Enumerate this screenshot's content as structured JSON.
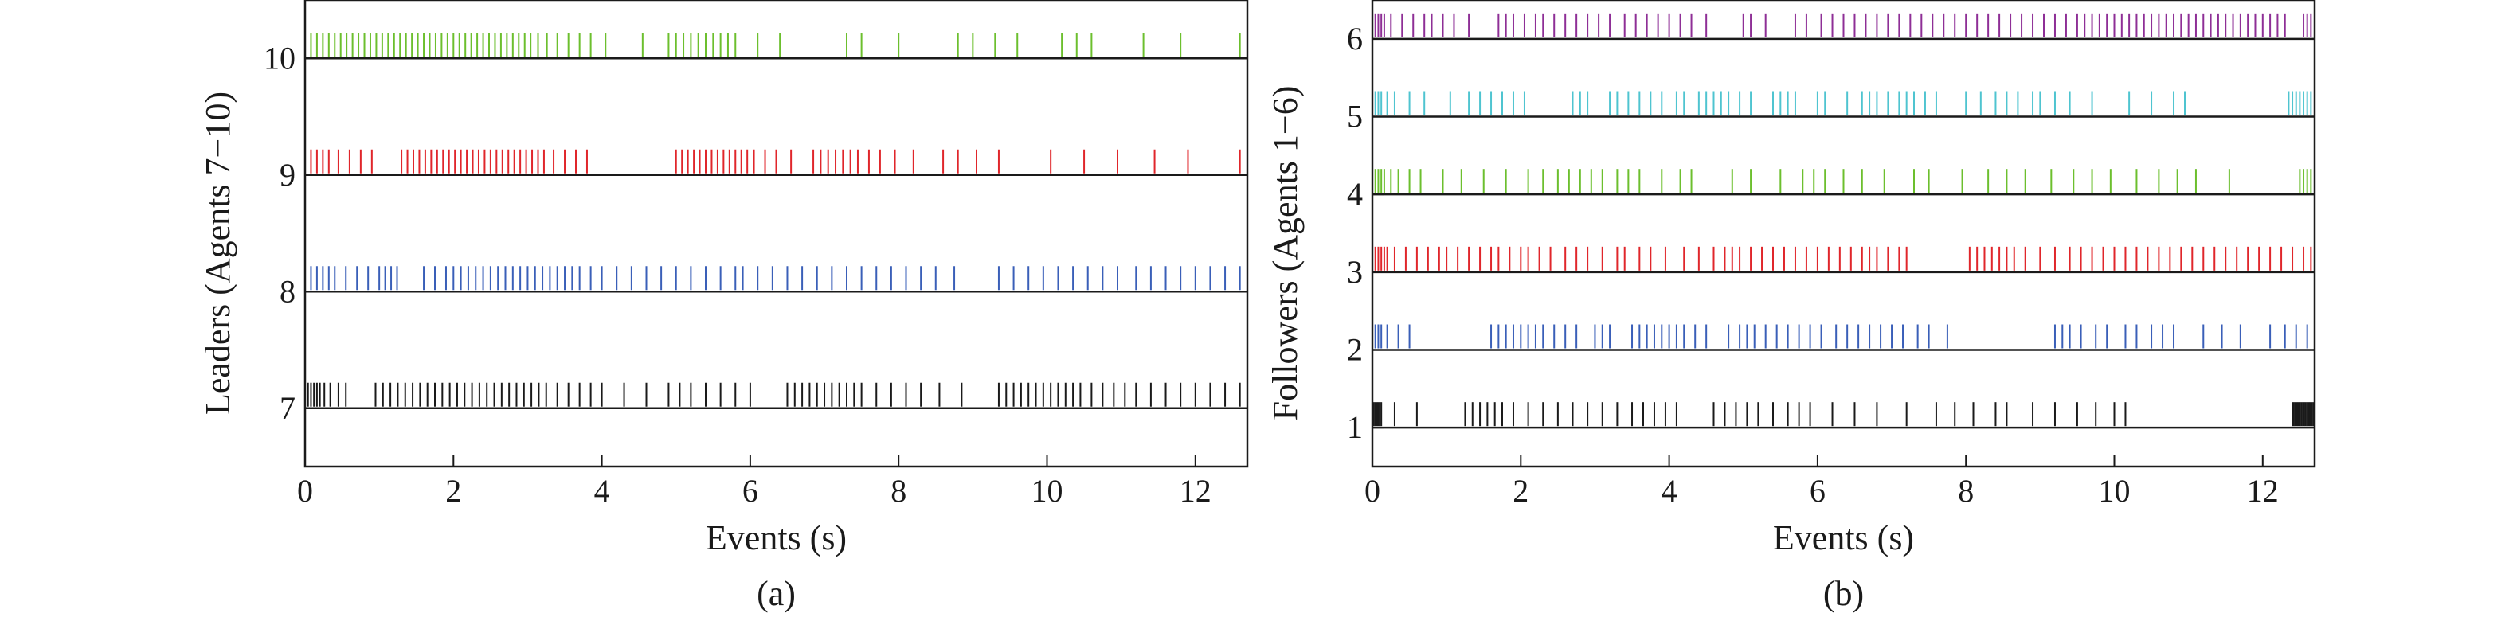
{
  "chart_data": [
    {
      "type": "event",
      "panel_label": "(a)",
      "xlabel": "Events (s)",
      "ylabel": "Leaders (Agents 7−10)",
      "xlim": [
        0,
        12.7
      ],
      "ylim": [
        6.5,
        10.5
      ],
      "xticks": [
        0,
        2,
        4,
        6,
        8,
        10,
        12
      ],
      "yticks": [
        7,
        8,
        9,
        10
      ],
      "grid": false,
      "series": [
        {
          "agent": 10,
          "color": "#6cbf2e",
          "x": [
            0.08,
            0.16,
            0.24,
            0.32,
            0.4,
            0.48,
            0.56,
            0.64,
            0.72,
            0.8,
            0.88,
            0.96,
            1.04,
            1.12,
            1.2,
            1.28,
            1.36,
            1.44,
            1.52,
            1.6,
            1.68,
            1.76,
            1.84,
            1.92,
            2.0,
            2.08,
            2.16,
            2.24,
            2.32,
            2.4,
            2.48,
            2.56,
            2.64,
            2.72,
            2.8,
            2.88,
            2.96,
            3.04,
            3.14,
            3.26,
            3.4,
            3.55,
            3.7,
            3.85,
            4.05,
            4.55,
            4.9,
            5.0,
            5.1,
            5.2,
            5.3,
            5.4,
            5.5,
            5.6,
            5.7,
            5.8,
            6.1,
            6.4,
            7.3,
            7.5,
            8.0,
            8.8,
            9.0,
            9.3,
            9.6,
            10.2,
            10.4,
            10.6,
            11.3,
            11.8,
            12.6
          ]
        },
        {
          "agent": 9,
          "color": "#e0262b",
          "x": [
            0.08,
            0.16,
            0.24,
            0.32,
            0.45,
            0.6,
            0.75,
            0.9,
            1.3,
            1.38,
            1.46,
            1.54,
            1.62,
            1.7,
            1.78,
            1.86,
            1.94,
            2.02,
            2.1,
            2.18,
            2.26,
            2.34,
            2.42,
            2.5,
            2.58,
            2.66,
            2.74,
            2.82,
            2.9,
            2.98,
            3.06,
            3.14,
            3.22,
            3.35,
            3.5,
            3.65,
            3.8,
            5.0,
            5.08,
            5.16,
            5.24,
            5.32,
            5.4,
            5.48,
            5.56,
            5.64,
            5.72,
            5.8,
            5.88,
            5.96,
            6.05,
            6.2,
            6.35,
            6.55,
            6.85,
            6.95,
            7.05,
            7.15,
            7.25,
            7.35,
            7.45,
            7.6,
            7.75,
            7.95,
            8.2,
            8.6,
            8.8,
            9.05,
            9.35,
            10.05,
            10.5,
            10.95,
            11.45,
            11.9,
            12.6
          ]
        },
        {
          "agent": 8,
          "color": "#3a5fb8",
          "x": [
            0.08,
            0.16,
            0.24,
            0.32,
            0.4,
            0.55,
            0.7,
            0.85,
            1.0,
            1.08,
            1.16,
            1.24,
            1.6,
            1.75,
            1.9,
            2.0,
            2.1,
            2.2,
            2.3,
            2.4,
            2.5,
            2.6,
            2.7,
            2.8,
            2.9,
            3.0,
            3.1,
            3.2,
            3.3,
            3.4,
            3.5,
            3.6,
            3.7,
            3.85,
            4.0,
            4.2,
            4.4,
            4.6,
            4.8,
            5.0,
            5.2,
            5.4,
            5.6,
            5.8,
            5.9,
            6.1,
            6.3,
            6.5,
            6.7,
            6.9,
            7.1,
            7.3,
            7.5,
            7.7,
            7.9,
            8.1,
            8.3,
            8.5,
            8.75,
            9.35,
            9.55,
            9.75,
            9.95,
            10.15,
            10.35,
            10.55,
            10.75,
            10.95,
            11.2,
            11.4,
            11.6,
            11.8,
            12.0,
            12.2,
            12.4,
            12.6
          ]
        },
        {
          "agent": 7,
          "color": "#1a1a1a",
          "x": [
            0.04,
            0.08,
            0.12,
            0.16,
            0.2,
            0.26,
            0.34,
            0.45,
            0.55,
            0.95,
            1.05,
            1.15,
            1.25,
            1.35,
            1.45,
            1.55,
            1.65,
            1.75,
            1.85,
            1.95,
            2.05,
            2.15,
            2.25,
            2.35,
            2.45,
            2.55,
            2.65,
            2.75,
            2.85,
            2.95,
            3.05,
            3.15,
            3.25,
            3.4,
            3.55,
            3.7,
            3.85,
            4.0,
            4.3,
            4.6,
            4.9,
            5.05,
            5.2,
            5.4,
            5.6,
            5.8,
            6.0,
            6.5,
            6.6,
            6.7,
            6.8,
            6.9,
            7.0,
            7.1,
            7.2,
            7.3,
            7.4,
            7.5,
            7.7,
            7.9,
            8.1,
            8.3,
            8.55,
            8.85,
            9.35,
            9.45,
            9.55,
            9.65,
            9.75,
            9.85,
            9.95,
            10.05,
            10.15,
            10.25,
            10.35,
            10.45,
            10.6,
            10.75,
            10.9,
            11.05,
            11.2,
            11.4,
            11.6,
            11.8,
            12.0,
            12.2,
            12.4,
            12.6
          ]
        }
      ]
    },
    {
      "type": "event",
      "panel_label": "(b)",
      "xlabel": "Events (s)",
      "ylabel": "Followers (Agents 1−6)",
      "xlim": [
        0,
        12.7
      ],
      "ylim": [
        0.5,
        6.5
      ],
      "xticks": [
        0,
        2,
        4,
        6,
        8,
        10,
        12
      ],
      "yticks": [
        1,
        2,
        3,
        4,
        5,
        6
      ],
      "grid": false,
      "series": [
        {
          "agent": 6,
          "color": "#8e2f96",
          "x": [
            0.04,
            0.08,
            0.12,
            0.16,
            0.25,
            0.4,
            0.55,
            0.7,
            0.8,
            0.95,
            1.1,
            1.3,
            1.7,
            1.8,
            1.9,
            2.05,
            2.2,
            2.3,
            2.45,
            2.6,
            2.75,
            2.9,
            3.05,
            3.2,
            3.4,
            3.55,
            3.7,
            3.85,
            4.0,
            4.15,
            4.3,
            4.5,
            5.0,
            5.1,
            5.3,
            5.7,
            5.85,
            6.05,
            6.2,
            6.35,
            6.5,
            6.65,
            6.8,
            6.95,
            7.1,
            7.25,
            7.4,
            7.55,
            7.7,
            7.85,
            8.0,
            8.15,
            8.3,
            8.45,
            8.6,
            8.75,
            8.9,
            9.05,
            9.2,
            9.35,
            9.5,
            9.6,
            9.7,
            9.8,
            9.9,
            10.0,
            10.1,
            10.2,
            10.3,
            10.4,
            10.5,
            10.6,
            10.7,
            10.8,
            10.9,
            11.0,
            11.1,
            11.2,
            11.3,
            11.4,
            11.5,
            11.6,
            11.7,
            11.8,
            11.9,
            12.0,
            12.1,
            12.2,
            12.3,
            12.55,
            12.6,
            12.65
          ]
        },
        {
          "agent": 5,
          "color": "#4fc4d0",
          "x": [
            0.04,
            0.08,
            0.12,
            0.2,
            0.3,
            0.5,
            0.7,
            1.05,
            1.3,
            1.45,
            1.6,
            1.75,
            1.9,
            2.05,
            2.7,
            2.8,
            2.9,
            3.2,
            3.3,
            3.45,
            3.6,
            3.75,
            3.9,
            4.1,
            4.2,
            4.4,
            4.5,
            4.6,
            4.7,
            4.8,
            4.95,
            5.1,
            5.4,
            5.5,
            5.6,
            5.7,
            6.0,
            6.1,
            6.4,
            6.6,
            6.7,
            6.8,
            6.95,
            7.1,
            7.2,
            7.3,
            7.45,
            7.6,
            8.0,
            8.2,
            8.4,
            8.55,
            8.7,
            8.9,
            9.0,
            9.2,
            9.4,
            9.7,
            10.2,
            10.5,
            10.8,
            10.95,
            12.35,
            12.4,
            12.45,
            12.5,
            12.55,
            12.6,
            12.65
          ]
        },
        {
          "agent": 4,
          "color": "#6cbf2e",
          "x": [
            0.04,
            0.08,
            0.12,
            0.16,
            0.25,
            0.35,
            0.5,
            0.65,
            0.95,
            1.2,
            1.5,
            1.8,
            2.1,
            2.3,
            2.5,
            2.65,
            2.8,
            2.95,
            3.1,
            3.3,
            3.45,
            3.6,
            3.9,
            4.15,
            4.3,
            4.85,
            5.1,
            5.5,
            5.8,
            5.95,
            6.1,
            6.35,
            6.6,
            6.9,
            7.3,
            7.5,
            7.95,
            8.3,
            8.55,
            8.8,
            9.15,
            9.45,
            9.7,
            9.95,
            10.3,
            10.6,
            10.85,
            11.1,
            11.55,
            12.5,
            12.55,
            12.6,
            12.65
          ]
        },
        {
          "agent": 3,
          "color": "#e0262b",
          "x": [
            0.04,
            0.08,
            0.12,
            0.16,
            0.2,
            0.3,
            0.45,
            0.6,
            0.75,
            0.9,
            1.0,
            1.15,
            1.3,
            1.45,
            1.6,
            1.7,
            1.85,
            2.0,
            2.1,
            2.25,
            2.4,
            2.6,
            2.75,
            2.9,
            3.1,
            3.3,
            3.4,
            3.6,
            3.75,
            3.95,
            4.2,
            4.4,
            4.6,
            4.75,
            4.85,
            4.95,
            5.1,
            5.25,
            5.4,
            5.55,
            5.7,
            5.85,
            6.0,
            6.15,
            6.3,
            6.45,
            6.6,
            6.7,
            6.8,
            6.95,
            7.1,
            7.2,
            8.05,
            8.15,
            8.25,
            8.35,
            8.45,
            8.55,
            8.65,
            8.8,
            9.0,
            9.2,
            9.4,
            9.55,
            9.7,
            9.85,
            10.0,
            10.15,
            10.3,
            10.45,
            10.6,
            10.75,
            10.9,
            11.05,
            11.2,
            11.35,
            11.5,
            11.65,
            11.8,
            11.95,
            12.1,
            12.25,
            12.4,
            12.55,
            12.65
          ]
        },
        {
          "agent": 2,
          "color": "#3a5fb8",
          "x": [
            0.04,
            0.08,
            0.12,
            0.2,
            0.35,
            0.5,
            1.6,
            1.7,
            1.8,
            1.9,
            2.0,
            2.1,
            2.2,
            2.3,
            2.45,
            2.6,
            2.75,
            3.0,
            3.1,
            3.2,
            3.5,
            3.6,
            3.7,
            3.8,
            3.9,
            4.0,
            4.1,
            4.2,
            4.35,
            4.5,
            4.8,
            4.95,
            5.05,
            5.15,
            5.3,
            5.45,
            5.6,
            5.75,
            5.9,
            6.05,
            6.25,
            6.4,
            6.55,
            6.7,
            6.85,
            7.0,
            7.15,
            7.35,
            7.5,
            7.75,
            9.2,
            9.3,
            9.4,
            9.55,
            9.75,
            9.9,
            10.15,
            10.3,
            10.5,
            10.65,
            10.8,
            11.2,
            11.45,
            11.7,
            12.1,
            12.3,
            12.45,
            12.6
          ]
        },
        {
          "agent": 1,
          "color": "#1a1a1a",
          "x": [
            0.02,
            0.04,
            0.06,
            0.08,
            0.1,
            0.12,
            0.3,
            0.6,
            1.25,
            1.35,
            1.45,
            1.55,
            1.65,
            1.75,
            1.9,
            2.1,
            2.3,
            2.5,
            2.7,
            2.9,
            3.1,
            3.3,
            3.5,
            3.65,
            3.8,
            3.95,
            4.1,
            4.6,
            4.75,
            4.9,
            5.05,
            5.2,
            5.4,
            5.6,
            5.75,
            5.9,
            6.2,
            6.5,
            6.8,
            7.2,
            7.6,
            7.85,
            8.1,
            8.4,
            8.55,
            8.9,
            9.2,
            9.5,
            9.75,
            10.0,
            10.15,
            12.4,
            12.42,
            12.44,
            12.46,
            12.48,
            12.5,
            12.52,
            12.54,
            12.56,
            12.58,
            12.6,
            12.62,
            12.64,
            12.66,
            12.68
          ]
        }
      ]
    }
  ]
}
